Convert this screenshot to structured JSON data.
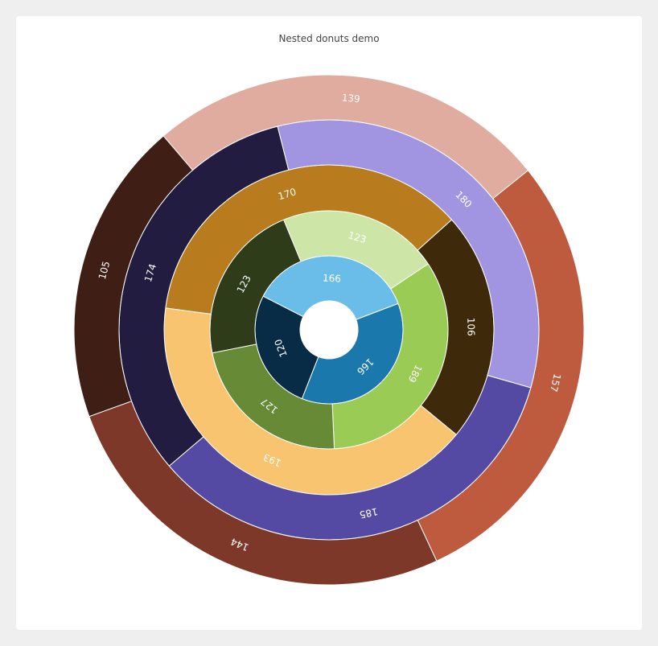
{
  "chart_data": {
    "type": "pie",
    "variant": "nested-donut",
    "title": "Nested donuts demo",
    "rings": [
      {
        "start_angle_deg": -63,
        "slices": [
          {
            "value": 166,
            "color": "#6bbde9"
          },
          {
            "value": 166,
            "color": "#1a78ad"
          },
          {
            "value": 120,
            "color": "#082c45"
          }
        ]
      },
      {
        "start_angle_deg": -22.4,
        "slices": [
          {
            "value": 123,
            "color": "#cde6a8"
          },
          {
            "value": 189,
            "color": "#9acb55"
          },
          {
            "value": 127,
            "color": "#668a36"
          },
          {
            "value": 123,
            "color": "#2e3c1a"
          }
        ]
      },
      {
        "start_angle_deg": -82.4,
        "slices": [
          {
            "value": 170,
            "color": "#b87c1e"
          },
          {
            "value": 106,
            "color": "#3e2a0b"
          },
          {
            "value": 193,
            "color": "#f8c46f"
          }
        ]
      },
      {
        "start_angle_deg": -14.2,
        "slices": [
          {
            "value": 180,
            "color": "#a195e2"
          },
          {
            "value": 185,
            "color": "#544aa3"
          },
          {
            "value": 174,
            "color": "#221c40"
          }
        ]
      },
      {
        "start_angle_deg": -40.5,
        "slices": [
          {
            "value": 139,
            "color": "#e0ac9f"
          },
          {
            "value": 157,
            "color": "#be5b3e"
          },
          {
            "value": 144,
            "color": "#7e3829"
          },
          {
            "value": 105,
            "color": "#3f1e16"
          }
        ]
      }
    ]
  }
}
